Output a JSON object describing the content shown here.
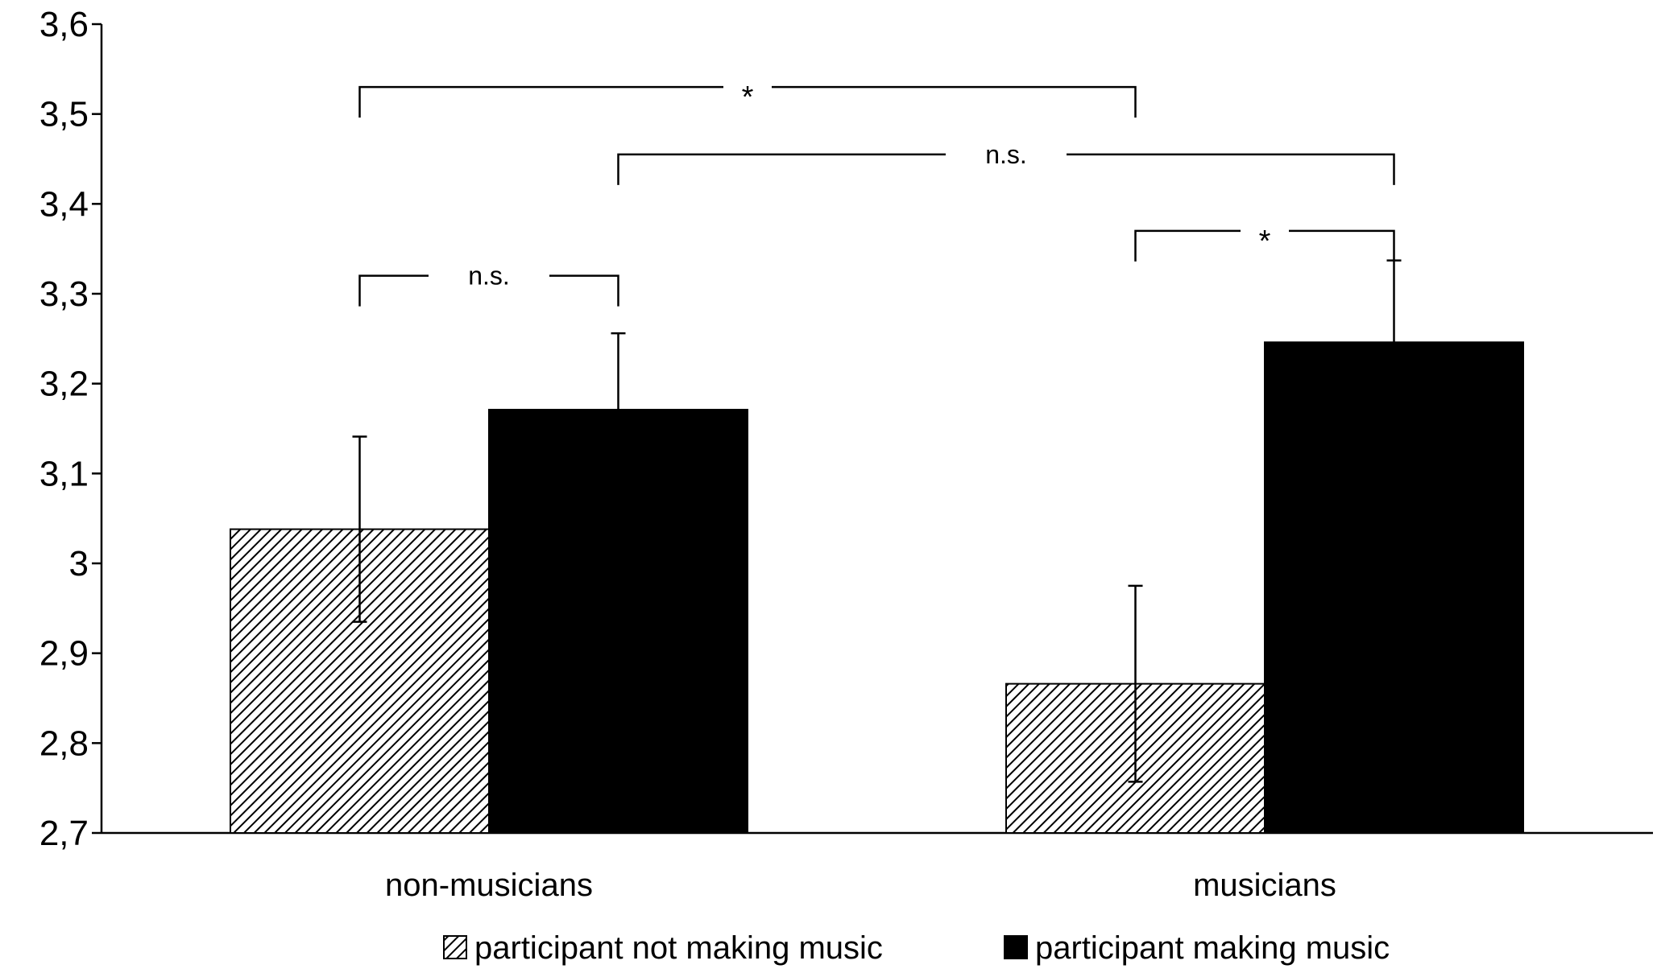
{
  "chart_data": {
    "type": "bar",
    "title": "",
    "xlabel": "",
    "ylabel": "",
    "ylim": [
      2.7,
      3.6
    ],
    "yticks": [
      2.7,
      2.8,
      2.9,
      3.0,
      3.1,
      3.2,
      3.3,
      3.4,
      3.5,
      3.6
    ],
    "ytick_labels": [
      "2,7",
      "2,8",
      "2,9",
      "3",
      "3,1",
      "3,2",
      "3,3",
      "3,4",
      "3,5",
      "3,6"
    ],
    "categories": [
      "non-musicians",
      "musicians"
    ],
    "series": [
      {
        "name": "participant not making music",
        "values": [
          3.038,
          2.866
        ],
        "errors": [
          0.103,
          0.109
        ],
        "pattern": "hatched",
        "color": "#000000"
      },
      {
        "name": "participant making music",
        "values": [
          3.171,
          3.246
        ],
        "errors": [
          0.085,
          0.091
        ],
        "pattern": "solid",
        "color": "#000000"
      }
    ],
    "legend_position": "bottom",
    "grid": false,
    "significance": [
      {
        "label": "n.s.",
        "from": [
          0,
          0
        ],
        "to": [
          0,
          1
        ],
        "y": 3.32
      },
      {
        "label": "*",
        "from": [
          0,
          0
        ],
        "to": [
          1,
          0
        ],
        "y": 3.53
      },
      {
        "label": "n.s.",
        "from": [
          0,
          1
        ],
        "to": [
          1,
          1
        ],
        "y": 3.455
      },
      {
        "label": "*",
        "from": [
          1,
          0
        ],
        "to": [
          1,
          1
        ],
        "y": 3.37
      }
    ]
  }
}
